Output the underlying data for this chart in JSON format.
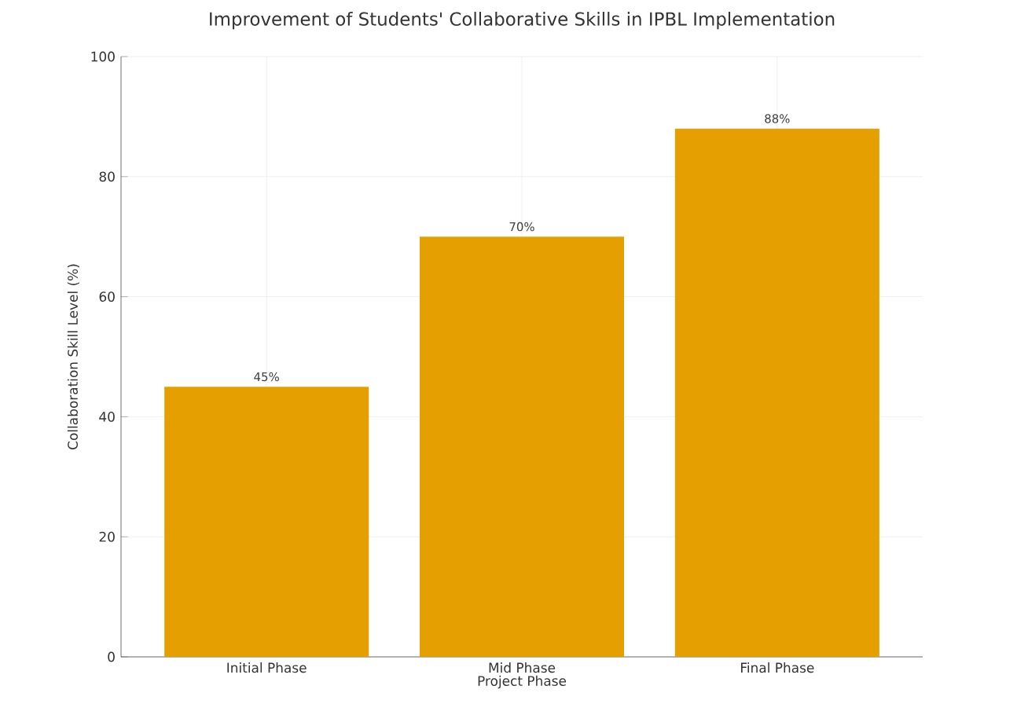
{
  "chart_data": {
    "type": "bar",
    "title": "Improvement of Students' Collaborative Skills in IPBL Implementation",
    "xlabel": "Project Phase",
    "ylabel": "Collaboration Skill Level (%)",
    "categories": [
      "Initial Phase",
      "Mid Phase",
      "Final Phase"
    ],
    "values": [
      45,
      70,
      88
    ],
    "value_labels": [
      "45%",
      "70%",
      "88%"
    ],
    "color": "#e5a000",
    "ylim": [
      0,
      100
    ],
    "yticks": [
      0,
      20,
      40,
      60,
      80,
      100
    ],
    "grid": true
  }
}
